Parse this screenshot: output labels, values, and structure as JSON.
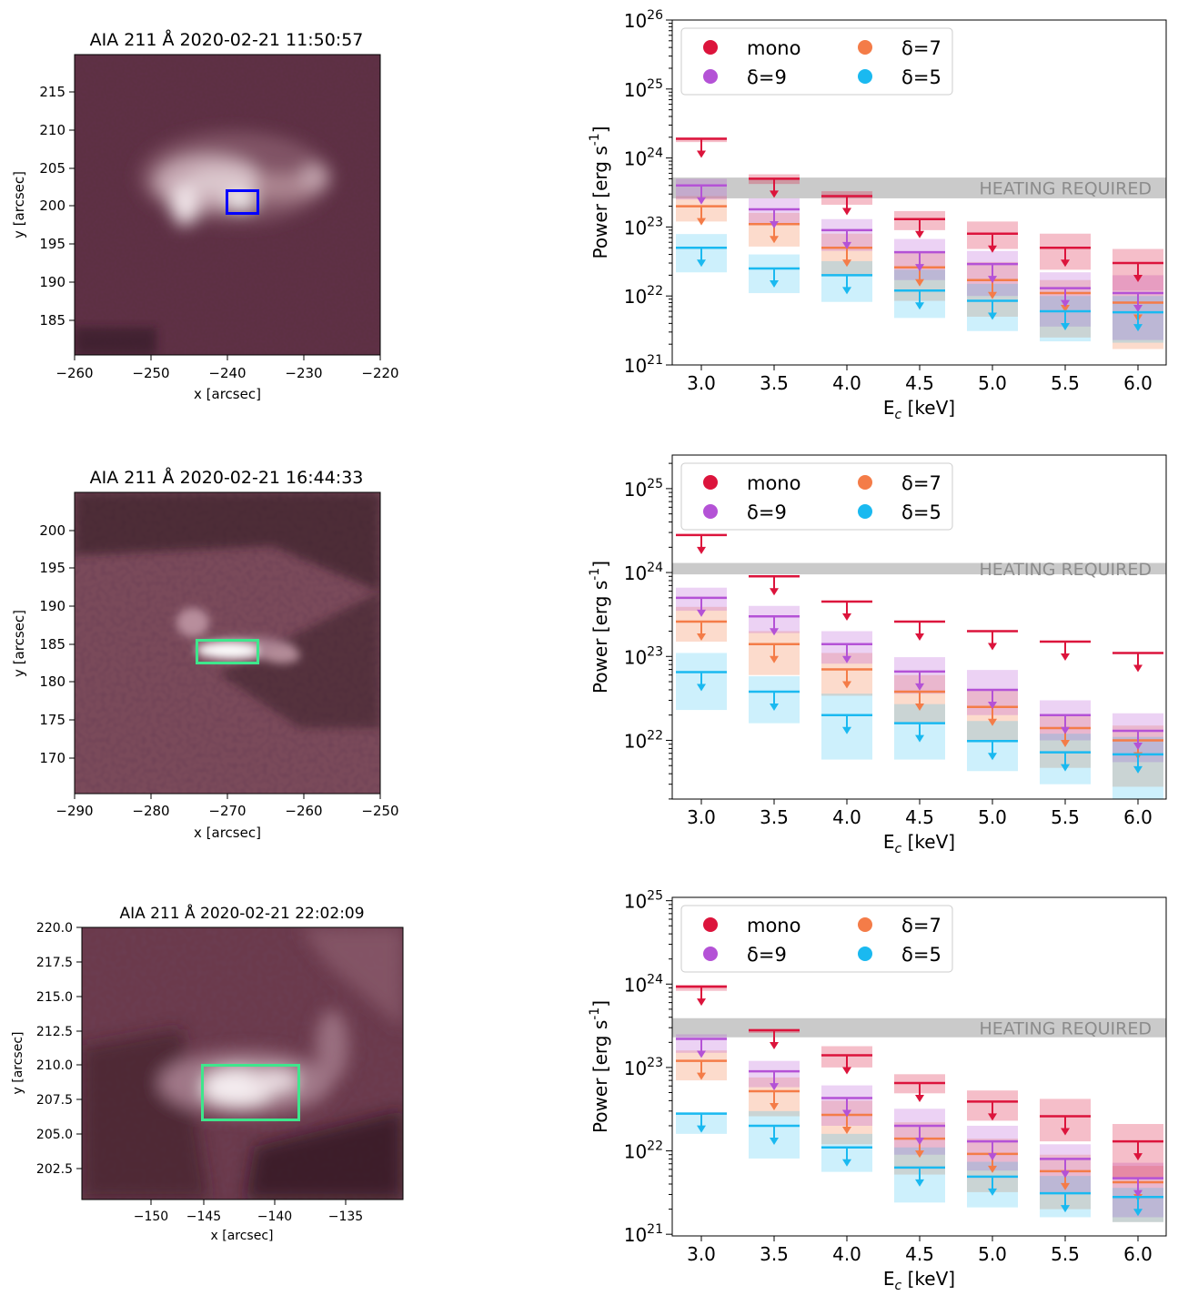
{
  "chart_data": [
    {
      "type": "image",
      "title": "AIA 211 Å 2020-02-21 11:50:57",
      "xlabel": "x [arcsec]",
      "ylabel": "y [arcsec]",
      "xlim": [
        -260,
        -220
      ],
      "ylim": [
        180.5,
        220
      ],
      "xticks": [
        -260,
        -250,
        -240,
        -230,
        -220
      ],
      "yticks": [
        185,
        190,
        195,
        200,
        205,
        210,
        215
      ],
      "xtick_labels": [
        "−260",
        "−250",
        "−240",
        "−230",
        "−220"
      ],
      "ytick_labels": [
        "185",
        "190",
        "195",
        "200",
        "205",
        "210",
        "215"
      ],
      "box": {
        "x": [
          -240,
          -236
        ],
        "y": [
          199,
          202
        ],
        "color": "#0000ff"
      }
    },
    {
      "type": "errorbar-upper-limits",
      "categories": [
        "3.0",
        "3.5",
        "4.0",
        "4.5",
        "5.0",
        "5.5",
        "6.0"
      ],
      "xlabel": "E_c [keV]",
      "ylabel": "Power [erg s^-1]",
      "ylim_log10": [
        21,
        26
      ],
      "ytick_labels": [
        "10^21",
        "10^22",
        "10^23",
        "10^24",
        "10^25",
        "10^26"
      ],
      "heating_required": {
        "label": "HEATING REQUIRED",
        "range": [
          2.6e+23,
          5.2e+23
        ]
      },
      "legend": [
        "mono",
        "δ=7",
        "δ=9",
        "δ=5"
      ],
      "series": [
        {
          "name": "mono",
          "color": "#dc143c",
          "values": [
            1.9e+24,
            5e+23,
            2.8e+23,
            1.3e+23,
            8e+22,
            5e+22,
            3e+22
          ],
          "band_low": [
            1.7e+24,
            4.2e+23,
            2.1e+23,
            9e+22,
            4.8e+22,
            2.4e+22,
            1.2e+22
          ],
          "band_high": [
            2e+24,
            5.8e+23,
            3.3e+23,
            1.7e+23,
            1.2e+23,
            8e+22,
            4.8e+22
          ]
        },
        {
          "name": "δ=9",
          "color": "#b452d6",
          "values": [
            4e+23,
            1.8e+23,
            9e+22,
            4.3e+22,
            2.9e+22,
            1.3e+22,
            1.1e+22
          ],
          "band_low": [
            2.5e+23,
            1.1e+23,
            4.5e+22,
            1.7e+22,
            1e+22,
            3.6e+21,
            2.3e+21
          ],
          "band_high": [
            5e+23,
            2.6e+23,
            1.3e+23,
            6.7e+22,
            4.5e+22,
            2.2e+22,
            2e+22
          ]
        },
        {
          "name": "δ=7",
          "color": "#f47c48",
          "values": [
            2e+23,
            1.1e+23,
            5e+22,
            2.6e+22,
            1.7e+22,
            1.1e+22,
            8e+21
          ],
          "band_low": [
            1.2e+23,
            5.2e+22,
            2e+22,
            8.5e+21,
            5e+21,
            2.5e+21,
            1.7e+21
          ],
          "band_high": [
            2.8e+23,
            1.6e+23,
            8e+22,
            4.3e+22,
            3.1e+22,
            1.7e+22,
            1.2e+22
          ]
        },
        {
          "name": "δ=5",
          "color": "#1ab9f0",
          "values": [
            5e+22,
            2.5e+22,
            2e+22,
            1.2e+22,
            8.5e+21,
            6e+21,
            5.8e+21
          ],
          "band_low": [
            2.2e+22,
            1.1e+22,
            8.2e+21,
            4.8e+21,
            3.1e+21,
            2.2e+21,
            2.1e+21
          ],
          "band_high": [
            7.9e+22,
            4e+22,
            3.2e+22,
            2.4e+22,
            1.5e+22,
            1e+22,
            1e+22
          ]
        }
      ]
    },
    {
      "type": "image",
      "title": "AIA 211 Å 2020-02-21 16:44:33",
      "xlabel": "x [arcsec]",
      "ylabel": "y [arcsec]",
      "xlim": [
        -290,
        -250
      ],
      "ylim": [
        165.5,
        205
      ],
      "xticks": [
        -290,
        -280,
        -270,
        -260,
        -250
      ],
      "yticks": [
        170,
        175,
        180,
        185,
        190,
        195,
        200
      ],
      "xtick_labels": [
        "−290",
        "−280",
        "−270",
        "−260",
        "−250"
      ],
      "ytick_labels": [
        "170",
        "175",
        "180",
        "185",
        "190",
        "195",
        "200"
      ],
      "box": {
        "x": [
          -274,
          -266
        ],
        "y": [
          182.5,
          185.5
        ],
        "color": "#3ee68c"
      }
    },
    {
      "type": "errorbar-upper-limits",
      "categories": [
        "3.0",
        "3.5",
        "4.0",
        "4.5",
        "5.0",
        "5.5",
        "6.0"
      ],
      "xlabel": "E_c [keV]",
      "ylabel": "Power [erg s^-1]",
      "ylim_log10": [
        21.3,
        25.4
      ],
      "ytick_labels": [
        "10^22",
        "10^23",
        "10^24",
        "10^25"
      ],
      "heating_required": {
        "label": "HEATING REQUIRED",
        "range": [
          9.5e+23,
          1.3e+24
        ]
      },
      "legend": [
        "mono",
        "δ=7",
        "δ=9",
        "δ=5"
      ],
      "series": [
        {
          "name": "mono",
          "color": "#dc143c",
          "values": [
            2.8e+24,
            9e+23,
            4.5e+23,
            2.6e+23,
            2e+23,
            1.5e+23,
            1.1e+23
          ]
        },
        {
          "name": "δ=9",
          "color": "#b452d6",
          "values": [
            5e+23,
            3e+23,
            1.4e+23,
            6.6e+22,
            4e+22,
            2e+22,
            1.3e+22
          ],
          "band_low": [
            3.5e+23,
            1.9e+23,
            8.2e+22,
            3.6e+22,
            2e+22,
            1e+22,
            5.5e+21
          ],
          "band_high": [
            6.6e+23,
            4e+23,
            2e+23,
            9.8e+22,
            6.9e+22,
            3e+22,
            2.1e+22
          ]
        },
        {
          "name": "δ=7",
          "color": "#f47c48",
          "values": [
            2.6e+23,
            1.4e+23,
            7e+22,
            3.8e+22,
            2.5e+22,
            1.4e+22,
            1e+22
          ],
          "band_low": [
            1.5e+23,
            6e+22,
            3.4e+22,
            1.6e+22,
            9.5e+21,
            4.7e+21,
            2.8e+21
          ],
          "band_high": [
            3.9e+23,
            2e+23,
            1.1e+23,
            6e+22,
            4e+22,
            2e+22,
            1.5e+22
          ]
        },
        {
          "name": "δ=5",
          "color": "#1ab9f0",
          "values": [
            6.5e+22,
            3.8e+22,
            2e+22,
            1.6e+22,
            9.8e+21,
            7.2e+21,
            6.8e+21
          ],
          "band_low": [
            2.3e+22,
            1.6e+22,
            5.9e+21,
            5.9e+21,
            4.3e+21,
            3e+21,
            2e+21
          ],
          "band_high": [
            1.1e+23,
            5.8e+22,
            3.6e+22,
            2.7e+22,
            1.7e+22,
            1.2e+22,
            1.1e+22
          ]
        }
      ]
    },
    {
      "type": "image",
      "title": "AIA 211 Å 2020-02-21 22:02:09",
      "xlabel": "x [arcsec]",
      "ylabel": "y [arcsec]",
      "xlim": [
        -155,
        -132
      ],
      "ylim": [
        200.6,
        220
      ],
      "xticks": [
        -150,
        -145,
        -140,
        -135
      ],
      "yticks": [
        202.5,
        205.0,
        207.5,
        210.0,
        212.5,
        215.0,
        217.5,
        220.0
      ],
      "xtick_labels": [
        "−150",
        "−145",
        "−140",
        "−135"
      ],
      "ytick_labels": [
        "202.5",
        "205.0",
        "207.5",
        "210.0",
        "212.5",
        "215.0",
        "217.5",
        "220.0"
      ],
      "box": {
        "x": [
          -146.4,
          -139.4
        ],
        "y": [
          206,
          210
        ],
        "color": "#3ee68c"
      }
    },
    {
      "type": "errorbar-upper-limits",
      "categories": [
        "3.0",
        "3.5",
        "4.0",
        "4.5",
        "5.0",
        "5.5",
        "6.0"
      ],
      "xlabel": "E_c [keV]",
      "ylabel": "Power [erg s^-1]",
      "ylim_log10": [
        20.98,
        25.04
      ],
      "ytick_labels": [
        "10^21",
        "10^22",
        "10^23",
        "10^24",
        "10^25"
      ],
      "heating_required": {
        "label": "HEATING REQUIRED",
        "range": [
          2.3e+23,
          3.9e+23
        ]
      },
      "legend": [
        "mono",
        "δ=7",
        "δ=9",
        "δ=5"
      ],
      "series": [
        {
          "name": "mono",
          "color": "#dc143c",
          "values": [
            9.3e+23,
            2.8e+23,
            1.4e+23,
            6.5e+22,
            3.9e+22,
            2.6e+22,
            1.3e+22
          ],
          "band_low": [
            8.3e+23,
            2.6e+23,
            1e+23,
            4.9e+22,
            2.3e+22,
            1.3e+22,
            4.7e+21
          ],
          "band_high": [
            9.8e+23,
            2.9e+23,
            1.8e+23,
            8.3e+22,
            5.3e+22,
            4.2e+22,
            2.1e+22
          ]
        },
        {
          "name": "δ=9",
          "color": "#b452d6",
          "values": [
            2.2e+23,
            9e+22,
            4.3e+22,
            2e+22,
            1.3e+22,
            8e+21,
            4.7e+21
          ],
          "band_low": [
            1.5e+23,
            5.8e+22,
            2e+22,
            9e+21,
            5.8e+21,
            3.1e+21,
            1.6e+21
          ],
          "band_high": [
            2.5e+23,
            1.2e+23,
            6.1e+22,
            3.2e+22,
            2e+22,
            1.2e+22,
            7.2e+21
          ]
        },
        {
          "name": "δ=7",
          "color": "#f47c48",
          "values": [
            1.2e+23,
            5.2e+22,
            2.7e+22,
            1.4e+22,
            9.2e+21,
            5.7e+21,
            4.2e+21
          ],
          "band_low": [
            7e+22,
            2.6e+22,
            1.2e+22,
            5.2e+21,
            3.2e+21,
            2e+21,
            1.4e+21
          ],
          "band_high": [
            1.6e+23,
            7.6e+22,
            4e+22,
            2.2e+22,
            1.4e+22,
            9e+21,
            6.6e+21
          ]
        },
        {
          "name": "δ=5",
          "color": "#1ab9f0",
          "values": [
            2.8e+22,
            2e+22,
            1.1e+22,
            6.3e+21,
            4.9e+21,
            3.1e+21,
            2.8e+21
          ],
          "band_low": [
            1.6e+22,
            8.1e+21,
            5.6e+21,
            2.4e+21,
            2.1e+21,
            1.6e+21,
            1.4e+21
          ],
          "band_high": [
            2.9e+22,
            3e+22,
            1.6e+22,
            1.1e+22,
            7.4e+21,
            5e+21,
            3.6e+21
          ]
        }
      ]
    }
  ]
}
